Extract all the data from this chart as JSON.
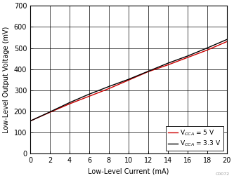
{
  "title": "",
  "xlabel": "Low-Level Current (mA)",
  "ylabel": "Low-Level Output Voltage (mV)",
  "xlim": [
    0,
    20
  ],
  "ylim": [
    0,
    700
  ],
  "xticks": [
    0,
    2,
    4,
    6,
    8,
    10,
    12,
    14,
    16,
    18,
    20
  ],
  "yticks": [
    0,
    100,
    200,
    300,
    400,
    500,
    600,
    700
  ],
  "line1_x": [
    0,
    2,
    4,
    6,
    8,
    10,
    12,
    14,
    16,
    18,
    20
  ],
  "line1_y": [
    155,
    198,
    242,
    282,
    318,
    352,
    390,
    428,
    462,
    500,
    540
  ],
  "line1_color": "#000000",
  "line1_label": "V$_{{CCA}}$ = 3.3 V",
  "line2_x": [
    0,
    2,
    4,
    6,
    8,
    10,
    12,
    14,
    16,
    18,
    20
  ],
  "line2_y": [
    155,
    196,
    236,
    272,
    308,
    348,
    388,
    420,
    455,
    490,
    530
  ],
  "line2_color": "#cc0000",
  "line2_label": "V$_{{CCA}}$ = 5 V",
  "legend_loc": "lower right",
  "background_color": "#ffffff",
  "watermark": "C0072",
  "label_fontsize": 7,
  "tick_fontsize": 7,
  "legend_fontsize": 6.5,
  "linewidth": 1.0
}
